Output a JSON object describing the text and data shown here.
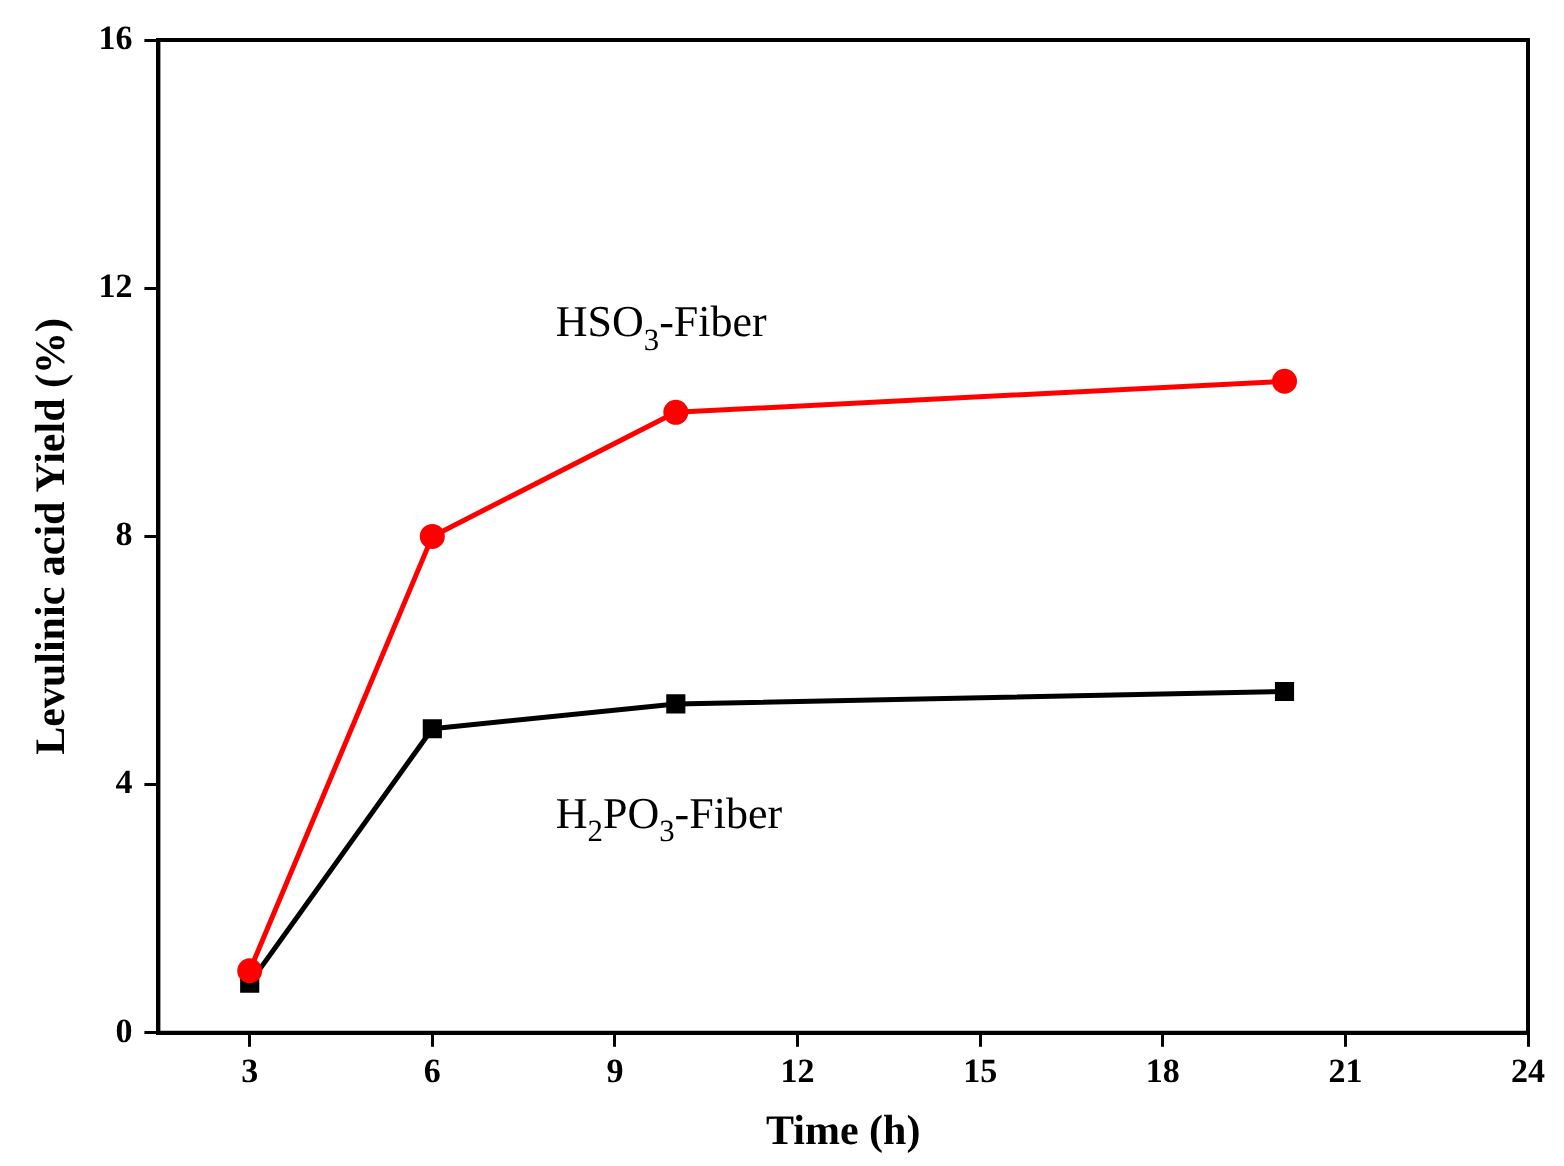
{
  "chart_data": {
    "type": "line",
    "xlabel": "Time (h)",
    "ylabel": "Levulinic acid Yield (%)",
    "x": [
      3,
      6,
      10,
      20
    ],
    "series": [
      {
        "name": "HSO$_{3}$-Fiber",
        "color": "#ff0000",
        "marker": "circle",
        "values": [
          1.0,
          8.0,
          10.0,
          10.5
        ]
      },
      {
        "name": "H$_{2}$PO$_{3}$-Fiber",
        "color": "#000000",
        "marker": "square",
        "values": [
          0.8,
          4.9,
          5.3,
          5.5
        ]
      }
    ],
    "xlim": [
      1.5,
      24
    ],
    "xticks": [
      3,
      6,
      9,
      12,
      15,
      18,
      21,
      24
    ],
    "ylim": [
      0,
      16
    ],
    "yticks": [
      0,
      4,
      8,
      12,
      16
    ],
    "grid": false,
    "legend": false,
    "line_style": "solid"
  }
}
